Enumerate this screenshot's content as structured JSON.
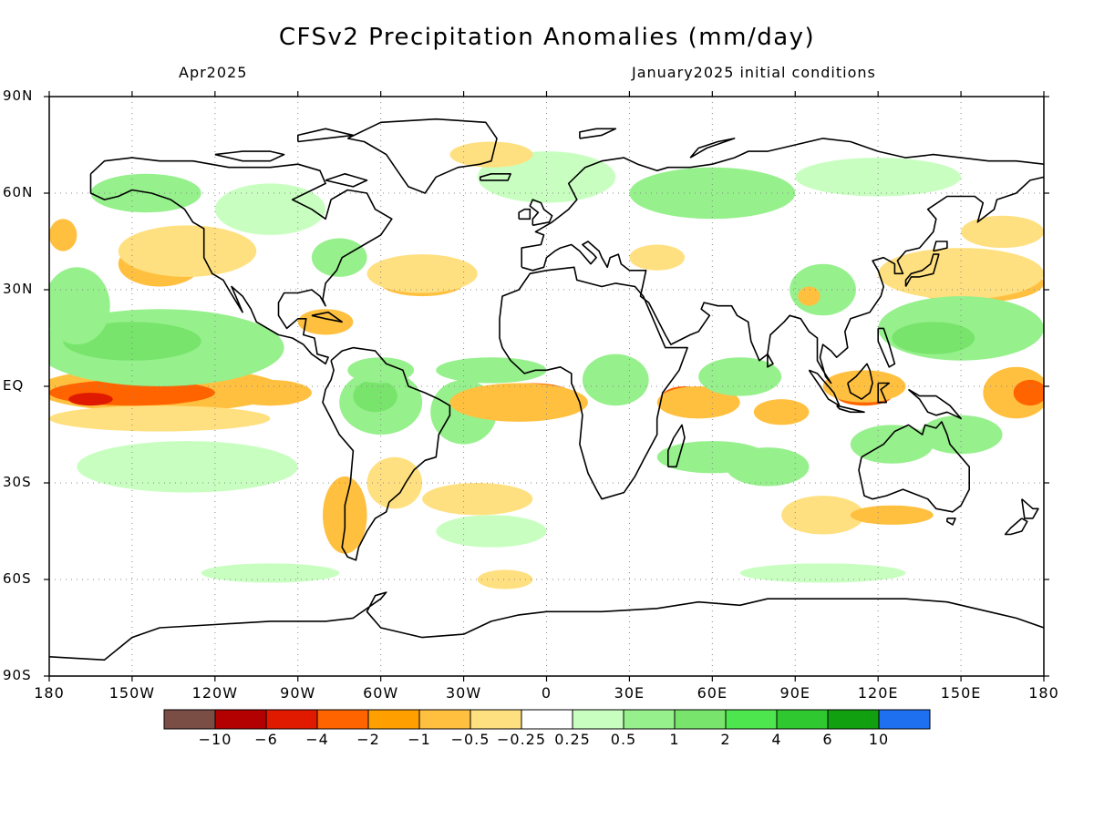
{
  "title": "CFSv2 Precipitation Anomalies (mm/day)",
  "subtitle_left": "Apr2025",
  "subtitle_right": "January2025 initial conditions",
  "map": {
    "projection": "equirectangular",
    "lon_range": [
      -180,
      180
    ],
    "lat_range": [
      -90,
      90
    ],
    "grid": "dotted",
    "lat_labels": [
      "90N",
      "60N",
      "30N",
      "EQ",
      "30S",
      "60S",
      "90S"
    ],
    "lat_values": [
      90,
      60,
      30,
      0,
      -30,
      -60,
      -90
    ],
    "lon_labels": [
      "180",
      "150W",
      "120W",
      "90W",
      "60W",
      "30W",
      "0",
      "30E",
      "60E",
      "90E",
      "120E",
      "150E",
      "180"
    ],
    "lon_values": [
      -180,
      -150,
      -120,
      -90,
      -60,
      -30,
      0,
      30,
      60,
      90,
      120,
      150,
      180
    ]
  },
  "colorbar": {
    "labels": [
      "-10",
      "-6",
      "-4",
      "-2",
      "-1",
      "-0.5",
      "-0.25",
      "0.25",
      "0.5",
      "1",
      "2",
      "4",
      "6",
      "10"
    ],
    "colors": [
      "#7a4e45",
      "#b30000",
      "#e01a00",
      "#ff6400",
      "#ffa000",
      "#ffc040",
      "#ffe080",
      "#ffffff",
      "#c8ffc0",
      "#96f08c",
      "#78e46c",
      "#4ee64e",
      "#30c830",
      "#10a010",
      "#1f70f0"
    ]
  },
  "palette": {
    "neg_light": "#ffe080",
    "neg_mid": "#ffc040",
    "neg_strong": "#ffa000",
    "neg_heavy": "#ff6400",
    "neg_extreme": "#e01a00",
    "pos_light": "#c8ffc0",
    "pos_mid": "#96f08c",
    "pos_strong": "#78e46c",
    "pos_heavy": "#4ee64e",
    "pos_extreme": "#30c830"
  }
}
